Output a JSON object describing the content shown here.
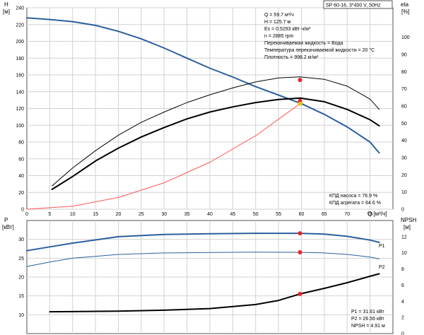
{
  "chart_data": [
    {
      "type": "line",
      "title": "SP 60-16, 3*400 V, 50Hz",
      "xlabel": "Q [м³/ч]",
      "ylabel": "H [м]",
      "y2label": "eta [%]",
      "xlim": [
        0,
        80
      ],
      "ylim": [
        0,
        240
      ],
      "y2lim": [
        0,
        120
      ],
      "xticks": [
        0,
        5,
        10,
        15,
        20,
        25,
        30,
        35,
        40,
        45,
        50,
        55,
        60,
        65,
        70,
        75
      ],
      "yticks": [
        0,
        20,
        40,
        60,
        80,
        100,
        120,
        140,
        160,
        180,
        200,
        220,
        240
      ],
      "y2ticks": [
        0,
        10,
        20,
        30,
        40,
        50,
        60,
        70,
        80,
        90,
        100
      ],
      "grid": true,
      "info_lines": [
        "Q = 59.7 м³/ч",
        "H = 125.7 м",
        "Es = 0.5293 кВт·ч/м³",
        "n = 2885 rpm",
        "Перекачиваемая жидкость = Вода",
        "Температура перекачиваемой жидкости = 20 °C",
        "Плотность = 998.2 кг/м³"
      ],
      "efficiency_lines": [
        "КПД насоса = 76.9 %",
        "КПД агрегата = 64.6 %"
      ],
      "series": [
        {
          "key": "head",
          "axis": "left",
          "color": "#2a5f9e",
          "width": 2,
          "x": [
            0,
            5,
            10,
            15,
            20,
            25,
            30,
            35,
            40,
            45,
            50,
            55,
            60,
            65,
            70,
            75,
            77
          ],
          "y": [
            228,
            226,
            223.5,
            219,
            212,
            203,
            192,
            180,
            168,
            157.5,
            146,
            136,
            125.7,
            113,
            98,
            80,
            67
          ]
        },
        {
          "key": "eta_pump",
          "axis": "right",
          "color": "#000000",
          "width": 1,
          "x": [
            5.5,
            10,
            15,
            20,
            25,
            30,
            35,
            40,
            45,
            50,
            55,
            59.7,
            65,
            70,
            75,
            77
          ],
          "y": [
            13.5,
            24,
            34,
            43,
            50.5,
            56.5,
            62,
            66.5,
            70.5,
            74,
            76.3,
            76.9,
            75.5,
            71.5,
            64,
            58
          ]
        },
        {
          "key": "eta_unit",
          "axis": "right",
          "color": "#000000",
          "width": 2,
          "x": [
            5.5,
            10,
            15,
            20,
            25,
            30,
            35,
            40,
            45,
            50,
            55,
            59.7,
            65,
            70,
            75,
            77
          ],
          "y": [
            11.5,
            19,
            28,
            35.5,
            42,
            47.5,
            52.5,
            56.5,
            59.5,
            62,
            63.8,
            64.6,
            62.5,
            58,
            52,
            48.5
          ]
        },
        {
          "key": "system",
          "axis": "left",
          "color": "#ff5555",
          "width": 1,
          "x": [
            0,
            10,
            20,
            30,
            40,
            50,
            59.7
          ],
          "y": [
            0,
            3.5,
            14,
            31.5,
            56,
            87.5,
            125.7
          ]
        }
      ],
      "points": [
        {
          "x": 59.7,
          "y": 154,
          "axis": "left",
          "color": "#ee2222"
        },
        {
          "x": 59.7,
          "y": 129,
          "axis": "left",
          "color": "#ee2222"
        },
        {
          "x": 59.7,
          "y": 125.7,
          "axis": "left",
          "color": "#f2c200"
        }
      ]
    },
    {
      "type": "line",
      "xlabel": "",
      "ylabel": "P [кВт]",
      "y2label": "NPSH [м]",
      "xlim": [
        0,
        80
      ],
      "ylim": [
        5,
        35
      ],
      "y2lim": [
        0,
        14
      ],
      "yticks": [
        10,
        15,
        20,
        25,
        30
      ],
      "y2ticks": [
        0,
        2,
        4,
        6,
        8,
        10,
        12
      ],
      "grid": true,
      "info_lines": [
        "P1 = 31.61 кВт",
        "P2 = 26.56 кВт",
        "NPSH = 4.91 м"
      ],
      "series": [
        {
          "key": "P1",
          "name": "P1",
          "axis": "left",
          "color": "#2a5f9e",
          "width": 2,
          "x": [
            0,
            5,
            10,
            20,
            30,
            40,
            50,
            59.7,
            65,
            70,
            75,
            77
          ],
          "y": [
            27,
            28,
            29,
            30.7,
            31.3,
            31.5,
            31.6,
            31.6,
            31.4,
            30.8,
            29.8,
            29.2
          ]
        },
        {
          "key": "P2",
          "name": "P2",
          "axis": "left",
          "color": "#2a5f9e",
          "width": 1,
          "x": [
            0,
            5,
            10,
            20,
            30,
            40,
            50,
            59.7,
            65,
            70,
            75,
            77
          ],
          "y": [
            22.8,
            24,
            25,
            26,
            26.4,
            26.5,
            26.6,
            26.56,
            26.4,
            26,
            25.3,
            24.8
          ]
        },
        {
          "key": "NPSH",
          "axis": "right",
          "color": "#000000",
          "width": 2,
          "x": [
            5,
            10,
            20,
            30,
            40,
            50,
            55,
            59.7,
            65,
            70,
            75,
            77
          ],
          "y": [
            2.7,
            2.72,
            2.78,
            2.9,
            3.1,
            3.6,
            4.1,
            4.91,
            5.6,
            6.3,
            7.1,
            7.4
          ]
        }
      ],
      "points": [
        {
          "x": 59.7,
          "y": 31.61,
          "axis": "left",
          "color": "#ee2222"
        },
        {
          "x": 59.7,
          "y": 26.56,
          "axis": "left",
          "color": "#ee2222"
        },
        {
          "x": 59.7,
          "y": 4.91,
          "axis": "right",
          "color": "#ee2222"
        }
      ]
    }
  ]
}
